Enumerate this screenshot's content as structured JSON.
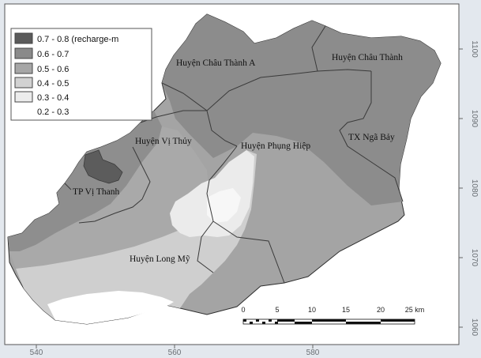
{
  "legend": {
    "items": [
      {
        "label": "0.7 - 0.8 (recharge-m",
        "color": "#5a5a5a"
      },
      {
        "label": "0.6 - 0.7",
        "color": "#8a8a8a"
      },
      {
        "label": "0.5 - 0.6",
        "color": "#a6a6a6"
      },
      {
        "label": "0.4 - 0.5",
        "color": "#d2d2d2"
      },
      {
        "label": "0.3 - 0.4",
        "color": "#ececec"
      },
      {
        "label": "0.2 - 0.3",
        "color": "#ffffff"
      }
    ]
  },
  "districts": {
    "chau_thanh_a": "Huyện Châu Thành A",
    "chau_thanh": "Huyện Châu Thành",
    "vi_thuy": "Huyện Vị Thủy",
    "phung_hiep": "Huyện Phụng Hiệp",
    "nga_bay": "TX Ngã Bảy",
    "vi_thanh": "TP Vị Thanh",
    "long_my": "Huyện Long Mỹ"
  },
  "x_axis": {
    "ticks": [
      "540",
      "560",
      "580"
    ]
  },
  "y_axis": {
    "ticks": [
      "1100",
      "1090",
      "1080",
      "1070",
      "1060"
    ]
  },
  "scale_bar": {
    "labels": [
      "0",
      "5",
      "10",
      "15",
      "20",
      "25 km"
    ]
  },
  "colors": {
    "frame_bg": "#dde3ea",
    "map_bg": "#ffffff",
    "boundary": "#3a3a3a"
  }
}
